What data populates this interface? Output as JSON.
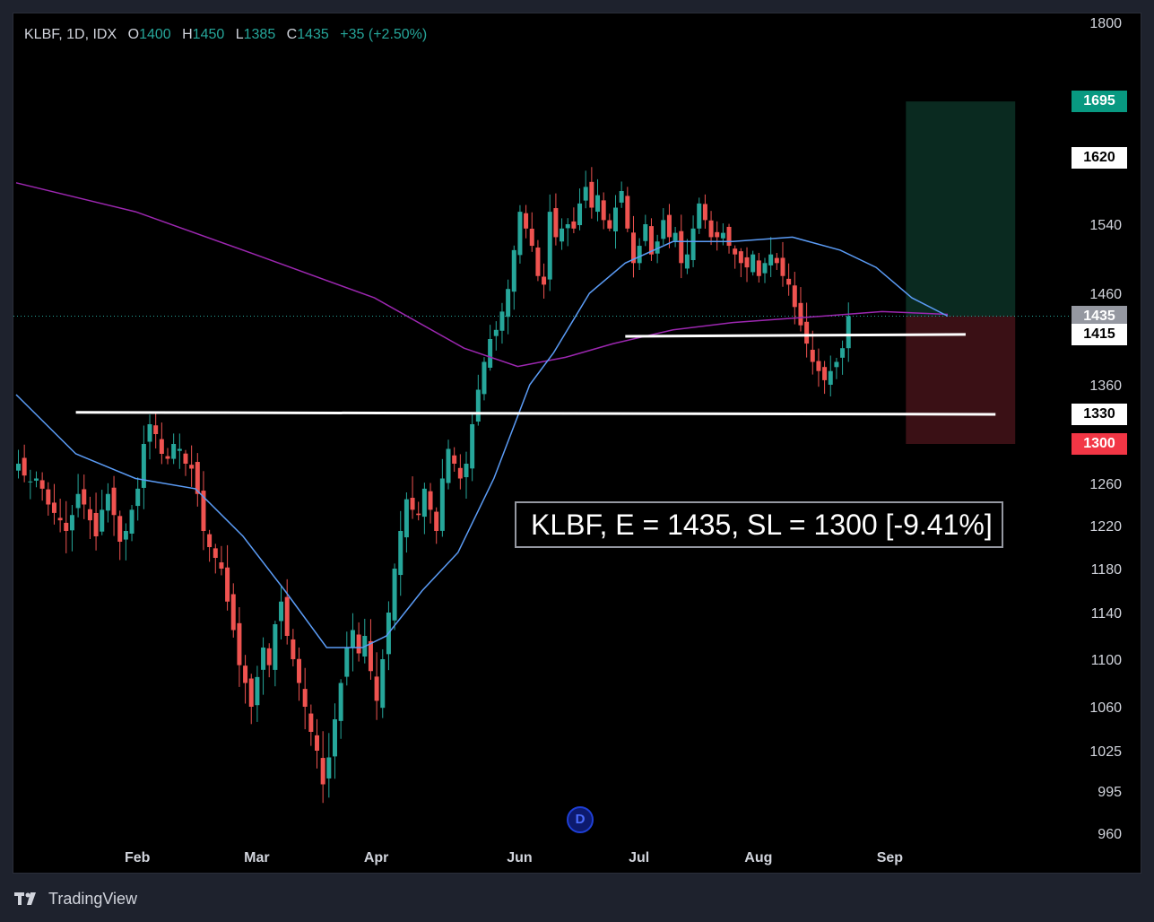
{
  "legend": {
    "symbol": "KLBF, 1D, IDX",
    "o_label": "O",
    "o_value": "1400",
    "h_label": "H",
    "h_value": "1450",
    "l_label": "L",
    "l_value": "1385",
    "c_label": "C",
    "c_value": "1435",
    "change": "+35 (+2.50%)"
  },
  "annotation": "KLBF, E = 1435, SL = 1300 [-9.41%]",
  "price_tags": [
    {
      "label": "1695",
      "value": 1695,
      "bg": "#089981",
      "fg": "#ffffff"
    },
    {
      "label": "1620",
      "value": 1620,
      "bg": "#ffffff",
      "fg": "#000000"
    },
    {
      "label": "1435",
      "value": 1435,
      "bg": "#9598a1",
      "fg": "#ffffff"
    },
    {
      "label": "1415",
      "value": 1415,
      "bg": "#ffffff",
      "fg": "#000000"
    },
    {
      "label": "1330",
      "value": 1330,
      "bg": "#ffffff",
      "fg": "#000000"
    },
    {
      "label": "1300",
      "value": 1300,
      "bg": "#f23645",
      "fg": "#ffffff"
    }
  ],
  "event_marker": "D",
  "footer": {
    "brand": "TradingView",
    "logo_icon": "tradingview-logo-icon"
  },
  "colors": {
    "up": "#26a69a",
    "down": "#ef5350",
    "ma_fast": "#5b9cf6",
    "ma_slow": "#9c27b0",
    "target_zone": "#0a2a20",
    "stop_zone": "#3a1015",
    "background": "#000000"
  },
  "chart_data": {
    "type": "candlestick",
    "symbol": "KLBF",
    "interval": "1D",
    "exchange": "IDX",
    "y_ticks": [
      1800,
      1620,
      1540,
      1460,
      1360,
      1260,
      1220,
      1180,
      1140,
      1100,
      1060,
      1025,
      995,
      960
    ],
    "x_ticks": [
      "Feb",
      "Mar",
      "Apr",
      "Jun",
      "Jul",
      "Aug",
      "Sep"
    ],
    "x_tick_index": [
      20,
      40,
      60,
      84,
      104,
      124,
      146
    ],
    "total_slots": 166,
    "last": {
      "open": 1400,
      "high": 1450,
      "low": 1385,
      "close": 1435
    },
    "closes": [
      1280,
      1268,
      1262,
      1265,
      1255,
      1240,
      1232,
      1225,
      1215,
      1230,
      1250,
      1240,
      1225,
      1210,
      1235,
      1250,
      1230,
      1205,
      1215,
      1235,
      1255,
      1300,
      1320,
      1310,
      1290,
      1285,
      1300,
      1295,
      1280,
      1275,
      1250,
      1215,
      1200,
      1190,
      1180,
      1150,
      1125,
      1095,
      1080,
      1060,
      1085,
      1110,
      1095,
      1130,
      1150,
      1120,
      1100,
      1080,
      1060,
      1040,
      1025,
      1000,
      1020,
      1050,
      1080,
      1110,
      1125,
      1105,
      1120,
      1090,
      1065,
      1100,
      1140,
      1180,
      1215,
      1245,
      1235,
      1230,
      1255,
      1235,
      1215,
      1265,
      1295,
      1280,
      1265,
      1280,
      1320,
      1355,
      1385,
      1410,
      1420,
      1440,
      1465,
      1510,
      1555,
      1535,
      1515,
      1480,
      1470,
      1555,
      1525,
      1535,
      1540,
      1535,
      1565,
      1585,
      1560,
      1575,
      1545,
      1535,
      1560,
      1580,
      1535,
      1495,
      1515,
      1540,
      1505,
      1520,
      1545,
      1525,
      1530,
      1495,
      1505,
      1535,
      1565,
      1545,
      1525,
      1525,
      1530,
      1515,
      1505,
      1495,
      1490,
      1505,
      1480,
      1495,
      1505,
      1495,
      1480,
      1470,
      1445,
      1425,
      1405,
      1385,
      1375,
      1365,
      1375,
      1385,
      1400,
      1435
    ],
    "ma_fast": [
      {
        "i": 0,
        "v": 1350
      },
      {
        "i": 10,
        "v": 1290
      },
      {
        "i": 20,
        "v": 1265
      },
      {
        "i": 30,
        "v": 1255
      },
      {
        "i": 38,
        "v": 1210
      },
      {
        "i": 45,
        "v": 1160
      },
      {
        "i": 52,
        "v": 1110
      },
      {
        "i": 58,
        "v": 1110
      },
      {
        "i": 62,
        "v": 1120
      },
      {
        "i": 68,
        "v": 1160
      },
      {
        "i": 74,
        "v": 1195
      },
      {
        "i": 80,
        "v": 1265
      },
      {
        "i": 86,
        "v": 1360
      },
      {
        "i": 90,
        "v": 1395
      },
      {
        "i": 96,
        "v": 1460
      },
      {
        "i": 102,
        "v": 1495
      },
      {
        "i": 110,
        "v": 1520
      },
      {
        "i": 120,
        "v": 1520
      },
      {
        "i": 130,
        "v": 1525
      },
      {
        "i": 138,
        "v": 1510
      },
      {
        "i": 144,
        "v": 1490
      },
      {
        "i": 150,
        "v": 1455
      },
      {
        "i": 156,
        "v": 1435
      }
    ],
    "ma_slow": [
      {
        "i": 0,
        "v": 1590
      },
      {
        "i": 20,
        "v": 1555
      },
      {
        "i": 40,
        "v": 1505
      },
      {
        "i": 60,
        "v": 1455
      },
      {
        "i": 75,
        "v": 1400
      },
      {
        "i": 84,
        "v": 1380
      },
      {
        "i": 92,
        "v": 1390
      },
      {
        "i": 100,
        "v": 1405
      },
      {
        "i": 110,
        "v": 1420
      },
      {
        "i": 120,
        "v": 1428
      },
      {
        "i": 135,
        "v": 1435
      },
      {
        "i": 145,
        "v": 1440
      },
      {
        "i": 156,
        "v": 1437
      }
    ],
    "lines": [
      {
        "from_i": 10,
        "to_i": 164,
        "value_from": 1332,
        "value_to": 1330
      },
      {
        "from_i": 102,
        "to_i": 159,
        "value_from": 1413,
        "value_to": 1415
      }
    ],
    "position": {
      "entry": 1435,
      "target": 1695,
      "stop": 1300,
      "from_i": 149,
      "to_i": 167
    }
  }
}
